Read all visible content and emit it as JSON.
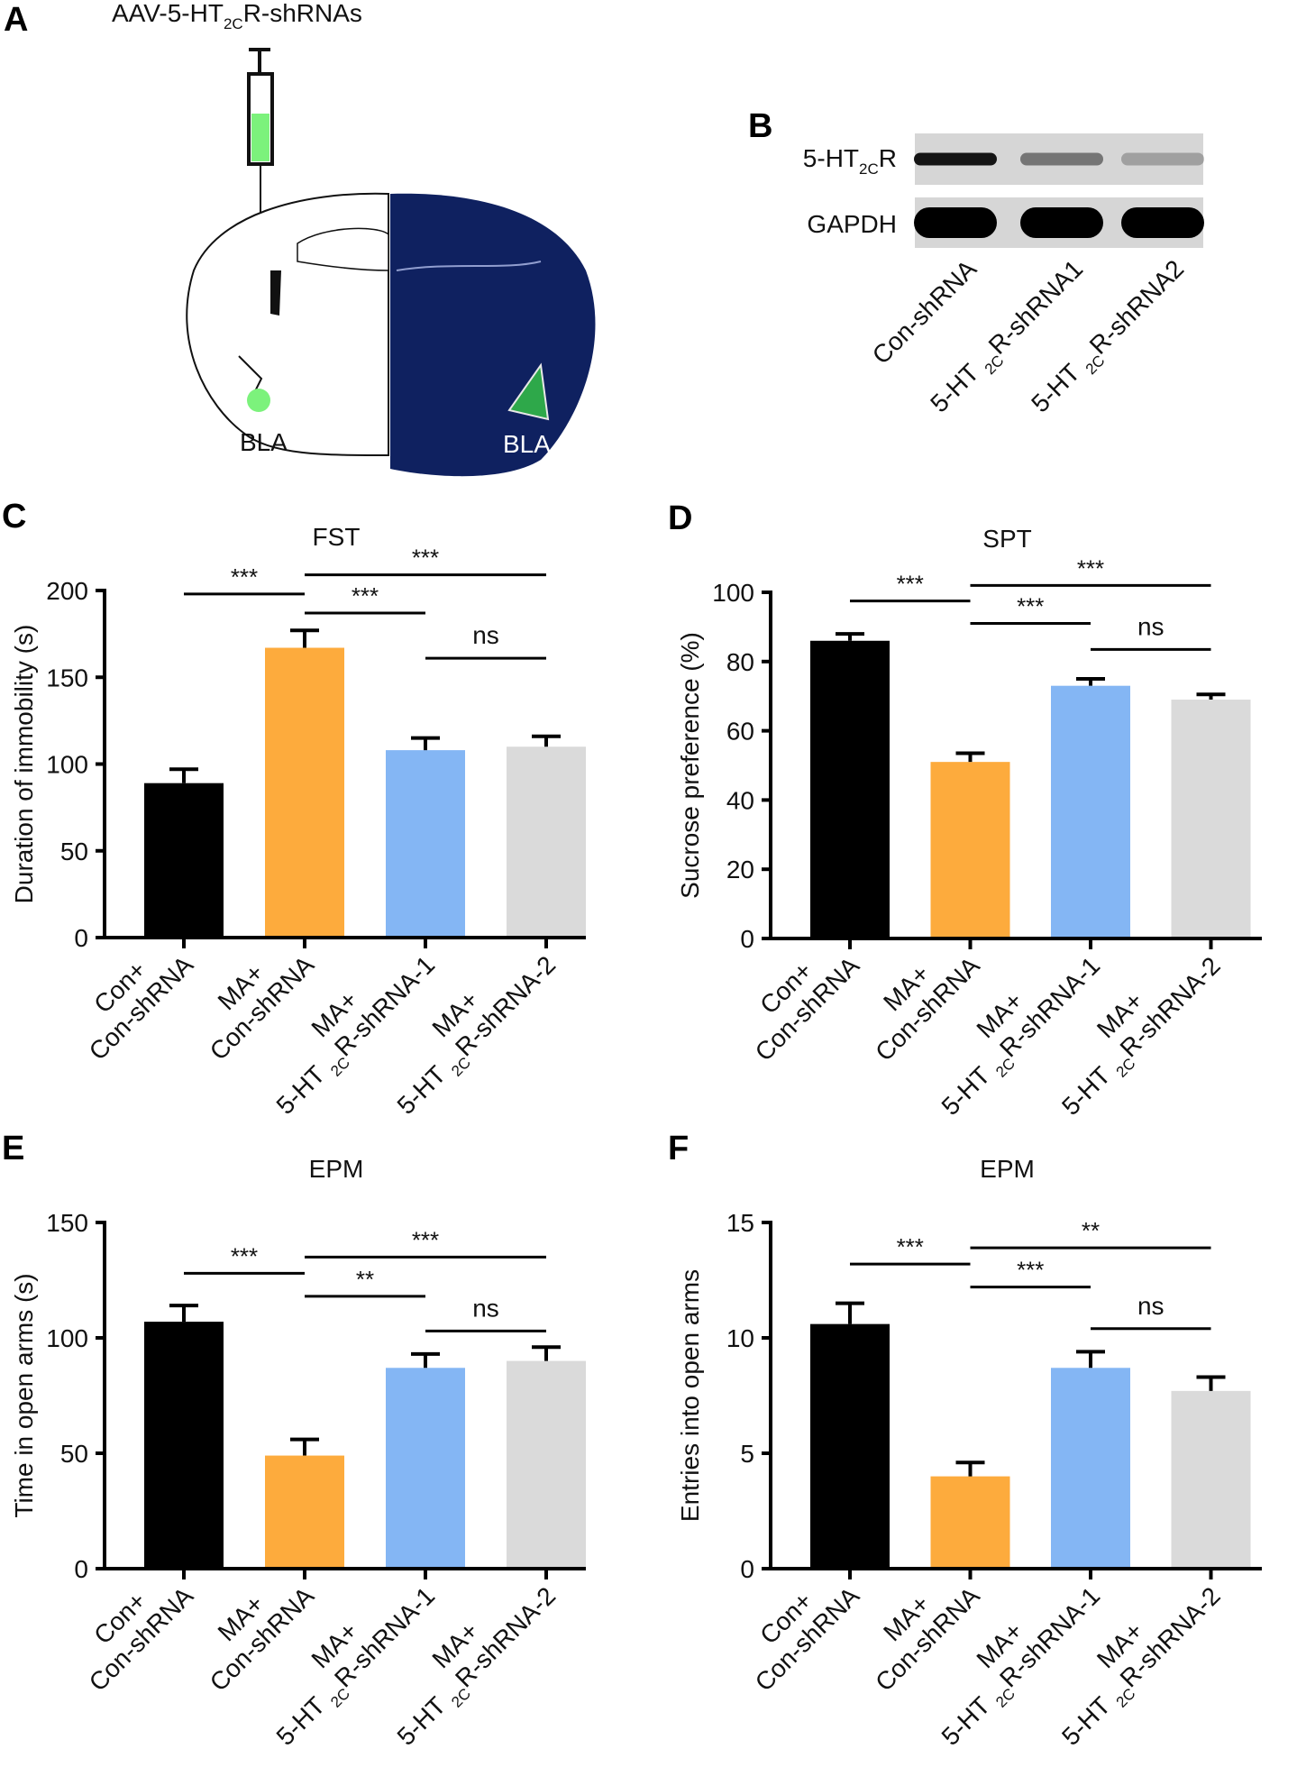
{
  "panel_a": {
    "letter": "A",
    "injection_label": {
      "pre": "AAV-5-HT",
      "sub": "2C",
      "post": "R-shRNAs"
    },
    "region_left": "BLA",
    "region_right": "BLA",
    "colors": {
      "virus": "#7cf27c",
      "brain_slice": "#0f2160",
      "bla_signal": "#2ea84a"
    }
  },
  "panel_b": {
    "letter": "B",
    "rows": [
      {
        "label": {
          "pre": "5-HT",
          "sub": "2C",
          "post": "R"
        },
        "intensity": [
          0.9,
          0.45,
          0.25
        ]
      },
      {
        "label": {
          "pre": "GAPDH",
          "sub": "",
          "post": ""
        },
        "intensity": [
          1,
          1,
          1
        ]
      }
    ],
    "lanes": [
      {
        "pre": "Con-shRNA",
        "sub": "",
        "post": ""
      },
      {
        "pre": "5-HT ",
        "sub": "2C",
        "post": "R-shRNA1"
      },
      {
        "pre": "5-HT ",
        "sub": "2C",
        "post": "R-shRNA2"
      }
    ]
  },
  "chart_data": [
    {
      "letter": "C",
      "type": "bar",
      "title": "FST",
      "ylabel": "Duration of immobility (s)",
      "ylim": [
        0,
        200
      ],
      "yticks": [
        0,
        50,
        100,
        150,
        200
      ],
      "values": [
        89,
        167,
        108,
        110
      ],
      "errors": [
        8,
        10,
        7,
        6
      ],
      "comparisons": [
        {
          "from": 0,
          "to": 1,
          "y": 198,
          "label": "***"
        },
        {
          "from": 1,
          "to": 3,
          "y": 209,
          "label": "***"
        },
        {
          "from": 1,
          "to": 2,
          "y": 187,
          "label": "***"
        },
        {
          "from": 2,
          "to": 3,
          "y": 161,
          "label": "ns"
        }
      ]
    },
    {
      "letter": "D",
      "type": "bar",
      "title": "SPT",
      "ylabel": "Sucrose preference (%)",
      "ylim": [
        0,
        100
      ],
      "yticks": [
        0,
        20,
        40,
        60,
        80,
        100
      ],
      "values": [
        86,
        51,
        73,
        69
      ],
      "errors": [
        2,
        2.5,
        2,
        1.5
      ],
      "comparisons": [
        {
          "from": 0,
          "to": 1,
          "y": 97.5,
          "label": "***"
        },
        {
          "from": 1,
          "to": 3,
          "y": 102,
          "label": "***"
        },
        {
          "from": 1,
          "to": 2,
          "y": 91,
          "label": "***"
        },
        {
          "from": 2,
          "to": 3,
          "y": 83.5,
          "label": "ns"
        }
      ]
    },
    {
      "letter": "E",
      "type": "bar",
      "title": "EPM",
      "ylabel": "Time in open arms (s)",
      "ylim": [
        0,
        150
      ],
      "yticks": [
        0,
        50,
        100,
        150
      ],
      "values": [
        107,
        49,
        87,
        90
      ],
      "errors": [
        7,
        7,
        6,
        6
      ],
      "comparisons": [
        {
          "from": 0,
          "to": 1,
          "y": 128,
          "label": "***"
        },
        {
          "from": 1,
          "to": 3,
          "y": 135,
          "label": "***"
        },
        {
          "from": 1,
          "to": 2,
          "y": 118,
          "label": "**"
        },
        {
          "from": 2,
          "to": 3,
          "y": 103,
          "label": "ns"
        }
      ]
    },
    {
      "letter": "F",
      "type": "bar",
      "title": "EPM",
      "ylabel": "Entries into open arms",
      "ylim": [
        0,
        15
      ],
      "yticks": [
        0,
        5,
        10,
        15
      ],
      "values": [
        10.6,
        4.0,
        8.7,
        7.7
      ],
      "errors": [
        0.9,
        0.6,
        0.7,
        0.6
      ],
      "comparisons": [
        {
          "from": 0,
          "to": 1,
          "y": 13.2,
          "label": "***"
        },
        {
          "from": 1,
          "to": 3,
          "y": 13.9,
          "label": "**"
        },
        {
          "from": 1,
          "to": 2,
          "y": 12.2,
          "label": "***"
        },
        {
          "from": 2,
          "to": 3,
          "y": 10.4,
          "label": "ns"
        }
      ]
    }
  ],
  "categories": [
    {
      "line1": "Con+",
      "line2": {
        "pre": "Con-shRNA",
        "sub": "",
        "post": ""
      }
    },
    {
      "line1": "MA+",
      "line2": {
        "pre": "Con-shRNA",
        "sub": "",
        "post": ""
      }
    },
    {
      "line1": "MA+",
      "line2": {
        "pre": "5-HT ",
        "sub": "2C",
        "post": "R-shRNA-1"
      }
    },
    {
      "line1": "MA+",
      "line2": {
        "pre": "5-HT ",
        "sub": "2C",
        "post": "R-shRNA-2"
      }
    }
  ],
  "bar_colors": [
    "#000000",
    "#fdab3d",
    "#84b6f4",
    "#dadada"
  ]
}
